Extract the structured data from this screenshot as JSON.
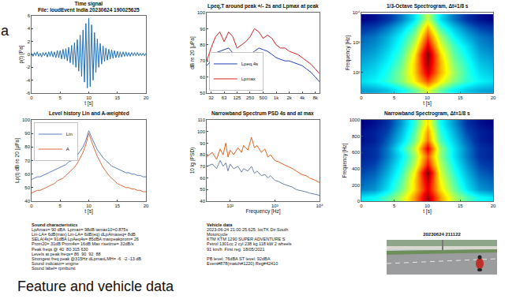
{
  "chart_data": [
    {
      "type": "line",
      "title": "Time signal",
      "subtitle": "File: loudEvent India 20230624 190025625",
      "x_label": "t [s]",
      "y_label": "p(t) [Pa]",
      "x": [
        0,
        0.25,
        0.5,
        0.75,
        1,
        1.25,
        1.5,
        1.75,
        2,
        2.25,
        2.5,
        2.75,
        3,
        3.25,
        3.5,
        3.75,
        4,
        4.25,
        4.5,
        4.75,
        5,
        5.25,
        5.5,
        5.75,
        6,
        6.25,
        6.5,
        6.75,
        7,
        7.25,
        7.5,
        7.75,
        8,
        8.25,
        8.5,
        8.75,
        9,
        9.25,
        9.5,
        9.75,
        10,
        10.25,
        10.5,
        10.75,
        11,
        11.25,
        11.5,
        11.75,
        12,
        12.25,
        12.5,
        12.75,
        13,
        13.25,
        13.5,
        13.75,
        14,
        14.25,
        14.5,
        14.75,
        15,
        15.25,
        15.5,
        15.75,
        16,
        16.25,
        16.5,
        16.75,
        17,
        17.25,
        17.5,
        17.75,
        18,
        18.25,
        18.5,
        18.75,
        19,
        19.25,
        19.5,
        19.75,
        20
      ],
      "series": [
        {
          "color": "#1f6fb5",
          "values": [
            0.2,
            -0.3,
            0.3,
            -0.2,
            0.4,
            -0.3,
            0.2,
            -0.4,
            0.3,
            -0.2,
            0.3,
            -0.4,
            0.4,
            -0.3,
            0.5,
            -0.4,
            0.4,
            -0.5,
            0.6,
            -0.5,
            0.6,
            -0.7,
            0.8,
            -0.7,
            0.9,
            -1.0,
            1.1,
            -1.3,
            1.4,
            -1.6,
            1.8,
            -2.0,
            2.3,
            -2.6,
            3.0,
            -3.4,
            3.8,
            -4.3,
            4.8,
            -5.2,
            5.6,
            -5.0,
            4.6,
            -4.0,
            3.4,
            -2.8,
            2.4,
            -2.0,
            1.7,
            -1.5,
            1.3,
            -1.1,
            1.0,
            -0.9,
            0.8,
            -0.7,
            0.7,
            -0.6,
            0.6,
            -0.5,
            0.5,
            -0.5,
            0.4,
            -0.4,
            0.4,
            -0.3,
            0.4,
            -0.3,
            0.3,
            -0.3,
            0.3,
            -0.2,
            0.3,
            -0.2,
            0.3,
            -0.2,
            0.2,
            -0.2,
            0.2,
            -0.2,
            0.2
          ]
        }
      ],
      "xlim": [
        0,
        20
      ],
      "xticks": [
        0,
        5,
        10,
        15,
        20
      ],
      "ylim": [
        -6,
        6
      ],
      "yticks": [
        -6,
        -4,
        -2,
        0,
        2,
        4,
        6
      ],
      "grid": false
    },
    {
      "type": "line",
      "title": "Lpeq,T around peak +/- 2s and Lpmax at peak",
      "y_label": "dB re 20 [μPa]",
      "log": "x",
      "legend": "lower left",
      "x": [
        25,
        31.5,
        40,
        50,
        63,
        80,
        100,
        125,
        160,
        200,
        250,
        315,
        400,
        500,
        630,
        800,
        1000,
        1250,
        1600,
        2000,
        2500,
        3150,
        4000,
        5000,
        6300,
        8000,
        10000
      ],
      "series": [
        {
          "name": "Lpeq,4s",
          "color": "#1f3fbf",
          "values": [
            67,
            70,
            75,
            76,
            77,
            78,
            75,
            72,
            72,
            73,
            74,
            76,
            78,
            77,
            76,
            74,
            72,
            71,
            70,
            70,
            69,
            68,
            67,
            65,
            63,
            60,
            57
          ]
        },
        {
          "name": "Lpmax",
          "color": "#d62020",
          "values": [
            70,
            78,
            85,
            88,
            82,
            88,
            85,
            78,
            80,
            82,
            85,
            90,
            88,
            84,
            86,
            84,
            80,
            78,
            78,
            76,
            75,
            74,
            72,
            70,
            68,
            65,
            62
          ]
        }
      ],
      "xlim": [
        25,
        10000
      ],
      "xticks": [
        {
          "value": 31.5,
          "label": "32"
        },
        63,
        125,
        250,
        500,
        {
          "value": 1000,
          "label": "1k"
        },
        {
          "value": 2000,
          "label": "2k"
        },
        {
          "value": 4000,
          "label": "4k"
        },
        {
          "value": 8000,
          "label": "8k"
        }
      ],
      "ylim": [
        50,
        100
      ],
      "yticks": [
        50,
        60,
        70,
        80,
        90,
        100
      ],
      "grid": false
    },
    {
      "type": "heatmap",
      "title": "1/3-Octave Spectrogram, Δt=1/8 s",
      "x_label": "t [s]",
      "y_label": "Frequency [Hz]",
      "log": "y",
      "x": [
        0,
        2,
        4,
        6,
        8,
        10,
        12,
        14,
        16,
        18,
        20
      ],
      "y": [
        25,
        50,
        100,
        200,
        400,
        800,
        1600,
        3150,
        6300
      ],
      "z": [
        [
          45,
          46,
          48,
          52,
          58,
          66,
          58,
          52,
          48,
          46,
          45
        ],
        [
          50,
          52,
          55,
          60,
          68,
          78,
          68,
          60,
          55,
          52,
          50
        ],
        [
          48,
          50,
          54,
          60,
          70,
          85,
          72,
          62,
          55,
          50,
          48
        ],
        [
          46,
          48,
          52,
          58,
          70,
          88,
          72,
          60,
          54,
          48,
          46
        ],
        [
          44,
          46,
          50,
          56,
          68,
          90,
          70,
          58,
          52,
          46,
          44
        ],
        [
          42,
          44,
          48,
          54,
          64,
          84,
          66,
          56,
          50,
          44,
          42
        ],
        [
          40,
          42,
          46,
          52,
          60,
          78,
          62,
          52,
          46,
          42,
          40
        ],
        [
          36,
          38,
          42,
          48,
          56,
          72,
          56,
          48,
          42,
          38,
          36
        ],
        [
          30,
          32,
          36,
          42,
          50,
          64,
          50,
          42,
          36,
          32,
          30
        ]
      ],
      "xlim": [
        0,
        20
      ],
      "xticks": [
        0,
        5,
        10,
        15,
        20
      ],
      "ylim": [
        20,
        10000
      ],
      "yticks": [
        {
          "value": 100,
          "label": "10²"
        },
        {
          "value": 1000,
          "label": "10³"
        },
        {
          "value": 10000,
          "label": "10⁴"
        }
      ],
      "grid": false
    },
    {
      "type": "line",
      "title": "Level history Lin and A-weighted",
      "x_label": "t [s]",
      "y_label": "Lp(t) dB re 20 [μPa]",
      "legend": "upper left",
      "x": [
        0,
        0.5,
        1,
        1.5,
        2,
        2.5,
        3,
        3.5,
        4,
        4.5,
        5,
        5.5,
        6,
        6.5,
        7,
        7.5,
        8,
        8.5,
        9,
        9.5,
        10,
        10.5,
        11,
        11.5,
        12,
        12.5,
        13,
        13.5,
        14,
        14.5,
        15,
        15.5,
        16,
        16.5,
        17,
        17.5,
        18,
        18.5,
        19,
        19.5,
        20
      ],
      "series": [
        {
          "name": "Lin",
          "color": "#5a7fc0",
          "values": [
            56,
            57,
            58,
            58,
            59,
            60,
            61,
            62,
            63,
            64,
            65,
            66,
            67,
            69,
            70,
            72,
            74,
            77,
            80,
            85,
            92,
            87,
            82,
            78,
            75,
            72,
            70,
            68,
            66,
            65,
            64,
            63,
            62,
            61,
            61,
            60,
            60,
            59,
            59,
            58,
            58
          ]
        },
        {
          "name": "A",
          "color": "#e06a3a",
          "values": [
            46,
            47,
            48,
            48,
            49,
            50,
            51,
            52,
            53,
            55,
            56,
            57,
            59,
            61,
            63,
            65,
            68,
            72,
            76,
            82,
            90,
            84,
            78,
            73,
            69,
            65,
            62,
            59,
            57,
            55,
            53,
            52,
            51,
            50,
            50,
            49,
            49,
            48,
            48,
            47,
            47
          ]
        }
      ],
      "xlim": [
        0,
        20
      ],
      "xticks": [
        0,
        5,
        10,
        15,
        20
      ],
      "ylim": [
        40,
        100
      ],
      "yticks": [
        40,
        50,
        60,
        70,
        80,
        90,
        100
      ],
      "grid": false
    },
    {
      "type": "line",
      "title": "Narrowband Spectrum PSD 4s and at max",
      "x_label": "Frequency [Hz]",
      "y_label": "10 lg (PSD)",
      "log": "x",
      "x": [
        30,
        40,
        50,
        60,
        70,
        80,
        90,
        100,
        120,
        150,
        180,
        200,
        250,
        300,
        350,
        400,
        500,
        600,
        700,
        800,
        1000,
        1200,
        1500,
        2000,
        2500,
        3000,
        4000,
        5000,
        6000,
        8000,
        10000
      ],
      "series": [
        {
          "color": "#6b7fa8",
          "values": [
            70,
            72,
            68,
            75,
            70,
            73,
            66,
            72,
            68,
            70,
            65,
            68,
            66,
            70,
            64,
            66,
            62,
            63,
            60,
            62,
            58,
            57,
            55,
            53,
            52,
            50,
            49,
            48,
            47,
            46,
            45
          ]
        },
        {
          "color": "#e8601c",
          "values": [
            78,
            82,
            76,
            85,
            80,
            90,
            78,
            84,
            80,
            86,
            82,
            88,
            84,
            95,
            86,
            88,
            82,
            85,
            78,
            80,
            75,
            74,
            72,
            70,
            68,
            66,
            63,
            62,
            60,
            58,
            56
          ]
        }
      ],
      "xlim": [
        30,
        10000
      ],
      "xticks": [
        {
          "value": 100,
          "label": "10²"
        },
        {
          "value": 1000,
          "label": "10³"
        },
        {
          "value": 10000,
          "label": "10⁴"
        }
      ],
      "ylim": [
        40,
        110
      ],
      "yticks": [
        40,
        50,
        60,
        70,
        80,
        90,
        100,
        110
      ],
      "grid": false
    },
    {
      "type": "heatmap",
      "title": "Narrowband Spectrogram, Δt=1/8 s",
      "x_label": "t [s]",
      "y_label": "Frequency [Hz]",
      "x": [
        0,
        2,
        4,
        6,
        8,
        10,
        12,
        14,
        16,
        18,
        20
      ],
      "y": [
        50,
        150,
        250,
        350,
        450,
        550,
        650,
        750,
        850,
        950
      ],
      "z": [
        [
          48,
          50,
          54,
          60,
          70,
          84,
          70,
          60,
          54,
          50,
          48
        ],
        [
          40,
          42,
          48,
          56,
          66,
          80,
          66,
          56,
          48,
          42,
          40
        ],
        [
          38,
          40,
          46,
          54,
          66,
          82,
          64,
          54,
          46,
          40,
          38
        ],
        [
          36,
          38,
          44,
          52,
          64,
          86,
          62,
          52,
          44,
          38,
          36
        ],
        [
          34,
          36,
          42,
          50,
          60,
          78,
          60,
          50,
          42,
          36,
          34
        ],
        [
          32,
          34,
          40,
          48,
          58,
          74,
          58,
          48,
          40,
          34,
          32
        ],
        [
          32,
          34,
          40,
          50,
          60,
          80,
          58,
          48,
          40,
          34,
          32
        ],
        [
          30,
          32,
          38,
          46,
          56,
          72,
          54,
          46,
          38,
          32,
          30
        ],
        [
          30,
          32,
          36,
          44,
          54,
          70,
          52,
          44,
          36,
          32,
          30
        ],
        [
          28,
          30,
          34,
          42,
          52,
          66,
          50,
          42,
          34,
          30,
          28
        ]
      ],
      "xlim": [
        0,
        20
      ],
      "xticks": [
        0,
        5,
        10,
        15,
        20
      ],
      "ylim": [
        0,
        1000
      ],
      "yticks": [
        0,
        200,
        400,
        600,
        800,
        1000
      ],
      "grid": false
    }
  ],
  "side_label": "a",
  "text_panels": [
    {
      "title": "Sound characteristics",
      "lines": [
        "LpAmax= 90 dBA  Lpmax= 98dB tamax10=0.875s",
        "Lin-LA= 6dB(max) Lin-LA= 6dB(eq) dLpAmaxeq= 8dB",
        "SELA(4s)= 91dBA LpAeq4s= 85dBA maxpeakprom= 26",
        "Prom20= 31dB Prom4s= 16dB Max risetime= 32dB/s",
        "Peak freqs @ 40  80 315 630",
        "Levels at peak freqs= 86  90  92  88",
        "Strongest freq peak @315Hz dLpmaxLMH= -6  -2 -13 dB",
        "Sound indicator= engine",
        "Sound label= rpmburst"
      ]
    },
    {
      "title": "Vehicle data",
      "lines": [
        "2023-06-24 21:00:25.625  locTK Dir:South",
        "Motorcycle",
        "KTM KTM 1290 SUPER ADVENTURE S",
        "Petrol 1301cc 2 cyl 238 kg 118 kW 2 wheels",
        "91 km/h  First reg. 18/05/2021"
      ],
      "lines_after_gap": [
        "PB level: 76dBA ST level: 92dBA",
        "Event#878(match#1220) Reg#42410"
      ]
    }
  ],
  "photo": {
    "title": "20230624 211122"
  },
  "caption": "Feature and vehicle data"
}
